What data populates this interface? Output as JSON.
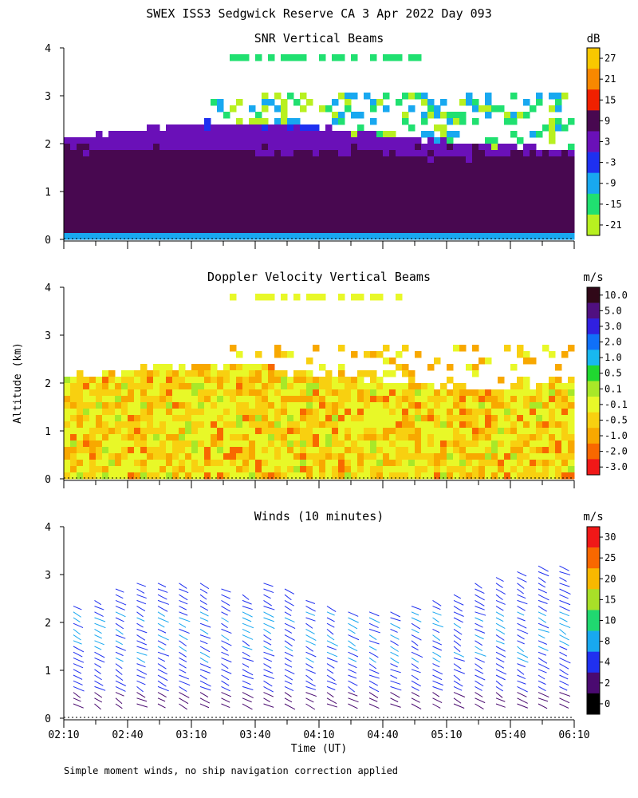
{
  "header": {
    "title": "SWEX ISS3 Sedgwick Reserve CA   3 Apr 2022 Day 093",
    "y_axis_label": "Altitude (km)",
    "x_axis_label": "Time (UT)",
    "footnote": "Simple moment winds, no ship navigation correction applied"
  },
  "chart_data": [
    {
      "type": "heatmap",
      "title": "SNR Vertical Beams",
      "unit": "dB",
      "xlabel": "Time (UT)",
      "ylabel": "Altitude (km)",
      "ylim": [
        0,
        4
      ],
      "y_ticks": [
        "0",
        "1",
        "2",
        "3",
        "4"
      ],
      "x_ticks": [
        "02:10",
        "02:40",
        "03:10",
        "03:40",
        "04:10",
        "04:40",
        "05:10",
        "05:40",
        "06:10"
      ],
      "colorbar": {
        "labels": [
          "27",
          "21",
          "15",
          "9",
          "3",
          "-3",
          "-9",
          "-15",
          "-21"
        ],
        "colors": [
          "#f8c800",
          "#f88800",
          "#f02000",
          "#480850",
          "#6a10b8",
          "#1e30f0",
          "#18a8f0",
          "#20e070",
          "#b8f020"
        ]
      }
    },
    {
      "type": "heatmap",
      "title": "Doppler Velocity Vertical Beams",
      "unit": "m/s",
      "xlabel": "Time (UT)",
      "ylabel": "Altitude (km)",
      "ylim": [
        0,
        4
      ],
      "y_ticks": [
        "0",
        "1",
        "2",
        "3",
        "4"
      ],
      "x_ticks": [
        "02:10",
        "02:40",
        "03:10",
        "03:40",
        "04:10",
        "04:40",
        "05:10",
        "05:40",
        "06:10"
      ],
      "colorbar": {
        "labels": [
          "10.0",
          "5.0",
          "3.0",
          "2.0",
          "1.0",
          "0.5",
          "0.1",
          "-0.1",
          "-0.5",
          "-1.0",
          "-2.0",
          "-3.0"
        ],
        "colors": [
          "#300818",
          "#501080",
          "#3020e0",
          "#1070f8",
          "#18b8f0",
          "#20d830",
          "#a8e828",
          "#e8f828",
          "#f8d010",
          "#f8a800",
          "#f86800",
          "#f01818"
        ]
      }
    },
    {
      "type": "wind-barbs",
      "title": "Winds (10 minutes)",
      "unit": "m/s",
      "xlabel": "Time (UT)",
      "ylabel": "Altitude (km)",
      "ylim": [
        0,
        4
      ],
      "y_ticks": [
        "0",
        "1",
        "2",
        "3",
        "4"
      ],
      "x_ticks": [
        "02:10",
        "02:40",
        "03:10",
        "03:40",
        "04:10",
        "04:40",
        "05:10",
        "05:40",
        "06:10"
      ],
      "colorbar": {
        "labels": [
          "30",
          "25",
          "20",
          "15",
          "10",
          "8",
          "4",
          "2",
          "0"
        ],
        "colors": [
          "#f01818",
          "#f86800",
          "#f8b800",
          "#a8e028",
          "#20d870",
          "#18a8f0",
          "#2030f0",
          "#4a0a70",
          "#000000"
        ]
      }
    }
  ]
}
